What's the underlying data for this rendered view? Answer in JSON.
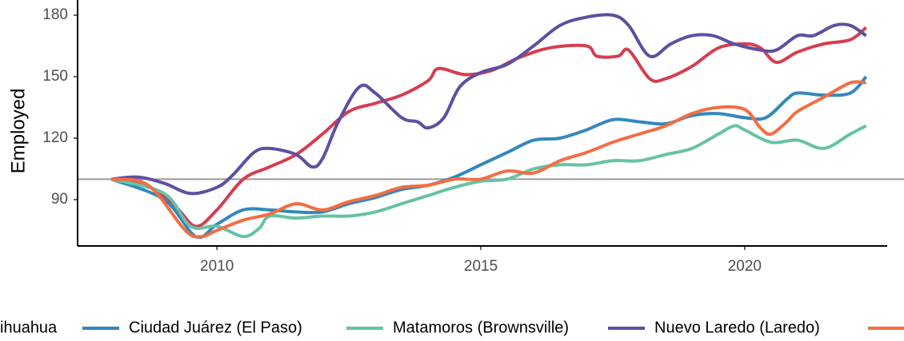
{
  "chart_data": {
    "type": "line",
    "y_label": "Employed",
    "xlim": [
      2007.36,
      2022.7
    ],
    "xticks": [
      2010,
      2015,
      2020
    ],
    "ylim": [
      67.4,
      187.4
    ],
    "yticks": [
      90,
      120,
      150,
      180
    ],
    "hline": 100,
    "hline_color": "#999999",
    "grid": false,
    "legend": "bottom",
    "series": [
      {
        "name": "ihuahua",
        "color": "#d53e4f",
        "x": [
          2008,
          2008.6,
          2009.2,
          2009.6,
          2010,
          2010.5,
          2011,
          2011.5,
          2012,
          2012.5,
          2013,
          2013.5,
          2014,
          2014.2,
          2014.7,
          2015.2,
          2015.7,
          2016.3,
          2017,
          2017.2,
          2017.6,
          2017.8,
          2018.2,
          2018.5,
          2019,
          2019.5,
          2020,
          2020.3,
          2020.6,
          2021,
          2021.5,
          2022,
          2022.3
        ],
        "values": [
          100,
          98,
          87,
          77,
          85,
          100,
          106,
          112,
          122,
          133,
          137,
          141,
          148,
          154,
          151,
          153,
          159,
          164,
          165,
          160,
          160,
          163,
          149,
          149,
          155,
          164,
          166,
          164,
          157,
          162,
          166,
          168,
          174
        ]
      },
      {
        "name": "Ciudad Juárez (El Paso)",
        "color": "#3288bd",
        "x": [
          2008,
          2009,
          2009.6,
          2010,
          2010.5,
          2011,
          2011.5,
          2012,
          2012.5,
          2013,
          2013.5,
          2014,
          2014.5,
          2015,
          2015.5,
          2016,
          2016.5,
          2017,
          2017.5,
          2018,
          2018.5,
          2019,
          2019.5,
          2020,
          2020.4,
          2020.8,
          2021,
          2021.5,
          2022,
          2022.3
        ],
        "values": [
          100,
          90,
          72,
          78,
          85,
          85,
          84,
          84,
          88,
          91,
          95,
          97,
          101,
          107,
          113,
          119,
          120,
          124,
          129,
          128,
          127,
          131,
          132,
          130,
          130,
          139,
          142,
          141,
          142,
          150
        ]
      },
      {
        "name": "Matamoros (Brownsville)",
        "color": "#66c2a5",
        "x": [
          2008,
          2009,
          2009.5,
          2010,
          2010.5,
          2010.8,
          2011,
          2011.5,
          2012,
          2012.5,
          2013,
          2013.5,
          2014,
          2014.5,
          2015,
          2015.5,
          2016,
          2016.5,
          2017,
          2017.5,
          2018,
          2018.5,
          2019,
          2019.5,
          2019.8,
          2020,
          2020.5,
          2021,
          2021.5,
          2022,
          2022.3
        ],
        "values": [
          100,
          93,
          77,
          77,
          72,
          76,
          82,
          81,
          82,
          82,
          84,
          88,
          92,
          96,
          99,
          100,
          105,
          107,
          107,
          109,
          109,
          112,
          115,
          122,
          126,
          124,
          118,
          119,
          115,
          122,
          126
        ]
      },
      {
        "name": "Nuevo Laredo (Laredo)",
        "color": "#5e4fa2",
        "x": [
          2008,
          2008.5,
          2009,
          2009.5,
          2010,
          2010.3,
          2010.7,
          2011,
          2011.5,
          2011.8,
          2012,
          2012.3,
          2012.7,
          2013,
          2013.5,
          2013.8,
          2014,
          2014.3,
          2014.6,
          2015,
          2015.5,
          2016,
          2016.5,
          2017,
          2017.5,
          2017.8,
          2018.2,
          2018.6,
          2019,
          2019.4,
          2019.8,
          2020.3,
          2020.6,
          2021,
          2021.3,
          2021.7,
          2022,
          2022.3
        ],
        "values": [
          100,
          101,
          98,
          93,
          96,
          102,
          113,
          115,
          112,
          106,
          110,
          128,
          145,
          142,
          130,
          128,
          125,
          130,
          145,
          152,
          156,
          165,
          175,
          179,
          180,
          175,
          160,
          166,
          170,
          170,
          166,
          163,
          163,
          170,
          170,
          175,
          175,
          170
        ]
      },
      {
        "color": "#f46d43",
        "x": [
          2008,
          2008.7,
          2009.4,
          2009.7,
          2010,
          2010.5,
          2011,
          2011.5,
          2012,
          2012.5,
          2013,
          2013.5,
          2014,
          2014.5,
          2015,
          2015.5,
          2016,
          2016.5,
          2017,
          2017.5,
          2018,
          2018.5,
          2019,
          2019.5,
          2020,
          2020.3,
          2020.5,
          2020.8,
          2021,
          2021.5,
          2022,
          2022.3
        ],
        "values": [
          100,
          97,
          75,
          72,
          75,
          80,
          83,
          88,
          85,
          89,
          92,
          96,
          97,
          100,
          100,
          104,
          103,
          109,
          113,
          118,
          122,
          126,
          132,
          135,
          134,
          125,
          122,
          128,
          133,
          140,
          147,
          147
        ]
      }
    ]
  }
}
